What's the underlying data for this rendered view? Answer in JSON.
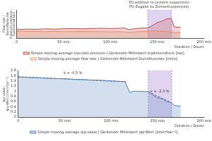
{
  "chart_data": [
    {
      "type": "line",
      "x": [
        0,
        10,
        20,
        30,
        40,
        50,
        60,
        70,
        80,
        90,
        100,
        110,
        115,
        120,
        125,
        130,
        140,
        145,
        150,
        155,
        160,
        165,
        168,
        175
      ],
      "series": [
        {
          "name": "Simple moving average injection pressure | Gleitender Mittelwert Injektionsdruck [bar]",
          "color": "#c0504d",
          "values": [
            30,
            32,
            31,
            33,
            32,
            33,
            34,
            33,
            34,
            35,
            34,
            35,
            36,
            30,
            33,
            35,
            36,
            45,
            55,
            60,
            68,
            70,
            40,
            38
          ]
        },
        {
          "name": "Simple moving average flow rate | Gleitender Mittelwert Durchflussrate [l/min]",
          "color": "#f0a070",
          "values": [
            25,
            24,
            24,
            23,
            24,
            23,
            23,
            24,
            23,
            23,
            22,
            23,
            22,
            20,
            22,
            23,
            24,
            25,
            25,
            24,
            23,
            22,
            20,
            20
          ]
        }
      ],
      "x_label": "Duration / Dauer",
      "y_label": [
        "Flow rate /",
        "Durchflussrate",
        "Injection pressure /",
        "Injektionsdruck"
      ],
      "xlim": [
        0,
        200
      ],
      "xticks": [
        0,
        {
          "value": 50,
          "label": "50 min"
        },
        {
          "value": 100,
          "label": "100 min"
        },
        {
          "value": 150,
          "label": "150 min"
        },
        {
          "value": 200,
          "label": "200 min"
        }
      ],
      "ylim": [
        0,
        100
      ],
      "tick_labels": "x",
      "grid": false,
      "legend": "bottom",
      "shaded_regions": [
        {
          "xlim": [
            140,
            165
          ],
          "color": "#9b6fd0"
        }
      ],
      "annotations": [
        {
          "text": "PU addition to cement suspension",
          "x": 152
        },
        {
          "text": "PU-Zugabe zu Zementsuspension",
          "x": 152
        }
      ]
    },
    {
      "type": "line",
      "x": [
        0,
        10,
        20,
        30,
        40,
        50,
        60,
        70,
        80,
        90,
        100,
        110,
        115,
        120,
        125,
        130,
        140,
        145,
        150,
        155,
        160,
        165,
        168,
        175
      ],
      "series": [
        {
          "name": "Simple moving average qip-value | Gleitender Mittelwert qip-Wert [l/min*bar⁻¹]",
          "color": "#4f81bd",
          "values": [
            1.55,
            1.53,
            1.52,
            1.5,
            1.49,
            1.48,
            1.46,
            1.45,
            1.43,
            1.42,
            1.4,
            1.38,
            1.37,
            0.95,
            1.0,
            1.0,
            0.98,
            0.85,
            0.75,
            0.7,
            0.6,
            0.55,
            0.45,
            0.42
          ]
        }
      ],
      "trend_lines": [
        {
          "label": "k = -0,5 %",
          "x": [
            0,
            118
          ],
          "values": [
            1.56,
            1.36
          ],
          "line_style": "dashed",
          "color": "#333333"
        },
        {
          "label": "k = -2,3 %",
          "x": [
            140,
            165
          ],
          "values": [
            0.98,
            0.55
          ],
          "line_style": "dashed",
          "color": "#333333"
        }
      ],
      "x_label": "Duration / Dauer",
      "y_label": [
        "qip-value /",
        "qip-Wert [l/min*bar⁻¹]"
      ],
      "xlim": [
        0,
        200
      ],
      "xticks": [
        0,
        {
          "value": 50,
          "label": "50 min"
        },
        {
          "value": 100,
          "label": "100 min"
        },
        {
          "value": 150,
          "label": "150 min"
        },
        {
          "value": 200,
          "label": "200 min"
        }
      ],
      "ylim": [
        0,
        1.8
      ],
      "yticks": [
        0,
        0.2,
        0.4,
        0.6,
        0.8,
        1,
        1.2,
        1.4,
        1.6,
        1.8
      ],
      "grid": false,
      "legend": "bottom",
      "shaded_regions": [
        {
          "xlim": [
            140,
            165
          ],
          "color": "#9b6fd0"
        }
      ]
    }
  ]
}
